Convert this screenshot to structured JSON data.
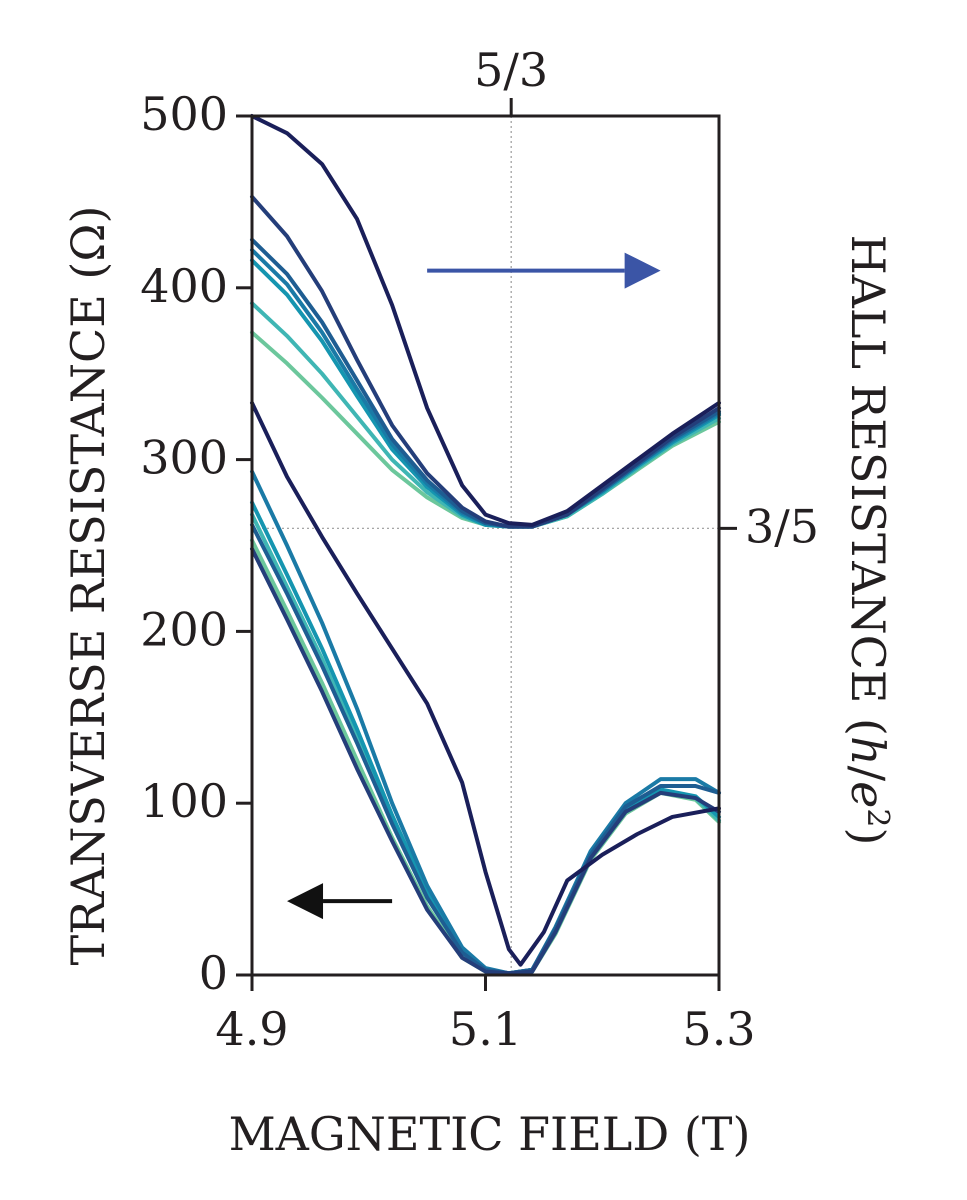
{
  "chart_data": {
    "type": "line",
    "xlabel": "MAGNETIC FIELD (T)",
    "ylabel": "TRANSVERSE RESISTANCE (Ω)",
    "y2label_parts": [
      "HALL RESISTANCE (",
      "h",
      "/",
      "e",
      "2",
      ")"
    ],
    "xlim": [
      4.9,
      5.3
    ],
    "ylim": [
      0,
      500
    ],
    "x_ticks": [
      {
        "value": 4.9,
        "label": "4.9"
      },
      {
        "value": 5.1,
        "label": "5.1"
      },
      {
        "value": 5.3,
        "label": "5.3"
      }
    ],
    "y_ticks": [
      {
        "value": 0,
        "label": "0"
      },
      {
        "value": 100,
        "label": "100"
      },
      {
        "value": 200,
        "label": "200"
      },
      {
        "value": 300,
        "label": "300"
      },
      {
        "value": 400,
        "label": "400"
      },
      {
        "value": 500,
        "label": "500"
      }
    ],
    "top_marker": {
      "x": 5.122,
      "label": "5/3"
    },
    "right_marker": {
      "y": 260,
      "label": "3/5"
    },
    "arrows": {
      "hall": {
        "color": "#3b55a6",
        "direction": "right",
        "from_x": 5.05,
        "to_x": 5.25,
        "y": 410
      },
      "transverse": {
        "color": "#111111",
        "direction": "left",
        "from_x": 5.02,
        "to_x": 4.93,
        "y": 43
      }
    },
    "grid": false,
    "series_group_hall": [
      {
        "color": "#1a1f5a",
        "x": [
          4.9,
          4.93,
          4.96,
          4.99,
          5.02,
          5.05,
          5.08,
          5.1,
          5.12,
          5.14,
          5.17,
          5.2,
          5.23,
          5.26,
          5.3
        ],
        "y": [
          500,
          490,
          472,
          440,
          390,
          330,
          285,
          268,
          263,
          262,
          270,
          285,
          300,
          315,
          333
        ]
      },
      {
        "color": "#243e7a",
        "x": [
          4.9,
          4.93,
          4.96,
          4.99,
          5.02,
          5.05,
          5.08,
          5.1,
          5.12,
          5.14,
          5.17,
          5.2,
          5.23,
          5.26,
          5.3
        ],
        "y": [
          453,
          430,
          398,
          358,
          320,
          292,
          272,
          264,
          261,
          261,
          268,
          283,
          298,
          313,
          330
        ]
      },
      {
        "color": "#1e5d92",
        "x": [
          4.9,
          4.93,
          4.96,
          4.99,
          5.02,
          5.05,
          5.08,
          5.1,
          5.12,
          5.14,
          5.17,
          5.2,
          5.23,
          5.26,
          5.3
        ],
        "y": [
          428,
          408,
          380,
          346,
          312,
          288,
          270,
          263,
          261,
          261,
          268,
          282,
          297,
          312,
          328
        ]
      },
      {
        "color": "#1a7aa6",
        "x": [
          4.9,
          4.93,
          4.96,
          4.99,
          5.02,
          5.05,
          5.08,
          5.1,
          5.12,
          5.14,
          5.17,
          5.2,
          5.23,
          5.26,
          5.3
        ],
        "y": [
          422,
          402,
          374,
          341,
          309,
          286,
          269,
          263,
          261,
          261,
          268,
          282,
          297,
          311,
          327
        ]
      },
      {
        "color": "#1595b0",
        "x": [
          4.9,
          4.93,
          4.96,
          4.99,
          5.02,
          5.05,
          5.08,
          5.1,
          5.12,
          5.14,
          5.17,
          5.2,
          5.23,
          5.26,
          5.3
        ],
        "y": [
          416,
          396,
          369,
          337,
          306,
          284,
          268,
          262,
          261,
          261,
          268,
          281,
          296,
          310,
          326
        ]
      },
      {
        "color": "#3fb6b4",
        "x": [
          4.9,
          4.93,
          4.96,
          4.99,
          5.02,
          5.05,
          5.08,
          5.1,
          5.12,
          5.14,
          5.17,
          5.2,
          5.23,
          5.26,
          5.3
        ],
        "y": [
          391,
          372,
          350,
          325,
          300,
          281,
          267,
          262,
          261,
          261,
          267,
          280,
          295,
          309,
          324
        ]
      },
      {
        "color": "#6cc79c",
        "x": [
          4.9,
          4.93,
          4.96,
          4.99,
          5.02,
          5.05,
          5.08,
          5.1,
          5.12,
          5.14,
          5.17,
          5.2,
          5.23,
          5.26,
          5.3
        ],
        "y": [
          374,
          356,
          336,
          315,
          294,
          278,
          266,
          262,
          261,
          261,
          267,
          280,
          294,
          308,
          322
        ]
      }
    ],
    "series_group_transverse": [
      {
        "color": "#1a1f5a",
        "x": [
          4.9,
          4.93,
          4.96,
          4.99,
          5.02,
          5.05,
          5.08,
          5.1,
          5.12,
          5.13,
          5.15,
          5.17,
          5.2,
          5.23,
          5.26,
          5.3
        ],
        "y": [
          333,
          290,
          255,
          222,
          190,
          158,
          112,
          60,
          15,
          6,
          25,
          55,
          70,
          82,
          92,
          97
        ]
      },
      {
        "color": "#243e7a",
        "x": [
          4.9,
          4.93,
          4.96,
          4.99,
          5.02,
          5.05,
          5.08,
          5.1,
          5.12,
          5.14,
          5.16,
          5.19,
          5.22,
          5.25,
          5.28,
          5.3
        ],
        "y": [
          248,
          207,
          165,
          120,
          78,
          38,
          10,
          2,
          1,
          2,
          25,
          68,
          95,
          106,
          103,
          95
        ]
      },
      {
        "color": "#1e5d92",
        "x": [
          4.9,
          4.93,
          4.96,
          4.99,
          5.02,
          5.05,
          5.08,
          5.1,
          5.12,
          5.14,
          5.16,
          5.19,
          5.22,
          5.25,
          5.28,
          5.3
        ],
        "y": [
          262,
          222,
          180,
          135,
          88,
          45,
          13,
          3,
          1,
          3,
          27,
          70,
          98,
          110,
          110,
          106
        ]
      },
      {
        "color": "#1a7aa6",
        "x": [
          4.9,
          4.93,
          4.96,
          4.99,
          5.02,
          5.05,
          5.08,
          5.1,
          5.12,
          5.14,
          5.16,
          5.19,
          5.22,
          5.25,
          5.28,
          5.3
        ],
        "y": [
          293,
          250,
          205,
          155,
          100,
          52,
          16,
          4,
          1,
          3,
          28,
          72,
          100,
          114,
          114,
          106
        ]
      },
      {
        "color": "#1595b0",
        "x": [
          4.9,
          4.93,
          4.96,
          4.99,
          5.02,
          5.05,
          5.08,
          5.1,
          5.12,
          5.14,
          5.16,
          5.19,
          5.22,
          5.25,
          5.28,
          5.3
        ],
        "y": [
          275,
          233,
          190,
          143,
          93,
          48,
          14,
          3,
          1,
          3,
          26,
          69,
          96,
          108,
          104,
          92
        ]
      },
      {
        "color": "#3fb6b4",
        "x": [
          4.9,
          4.93,
          4.96,
          4.99,
          5.02,
          5.05,
          5.08,
          5.1,
          5.12,
          5.14,
          5.16,
          5.19,
          5.22,
          5.25,
          5.28,
          5.3
        ],
        "y": [
          268,
          226,
          184,
          138,
          90,
          46,
          13,
          3,
          1,
          3,
          25,
          68,
          95,
          107,
          103,
          90
        ]
      },
      {
        "color": "#6cc79c",
        "x": [
          4.9,
          4.93,
          4.96,
          4.99,
          5.02,
          5.05,
          5.08,
          5.1,
          5.12,
          5.14,
          5.16,
          5.19,
          5.22,
          5.25,
          5.28,
          5.3
        ],
        "y": [
          253,
          212,
          170,
          125,
          80,
          40,
          10,
          2,
          1,
          2,
          24,
          67,
          94,
          106,
          102,
          89
        ]
      }
    ]
  }
}
